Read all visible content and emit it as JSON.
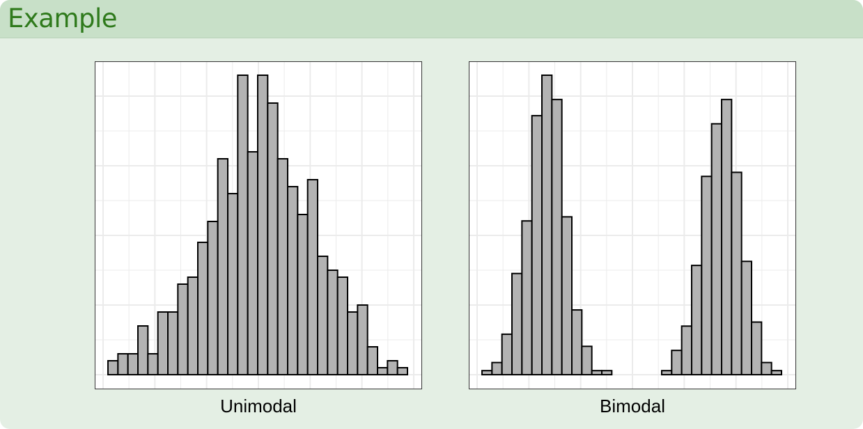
{
  "header": {
    "title": "Example"
  },
  "chart_data": [
    {
      "type": "bar",
      "subtype": "histogram",
      "caption": "Unimodal",
      "values": [
        2,
        3,
        3,
        7,
        3,
        9,
        9,
        13,
        14,
        19,
        22,
        31,
        26,
        43,
        32,
        43,
        39,
        31,
        27,
        23,
        28,
        17,
        15,
        14,
        9,
        10,
        4,
        1,
        2,
        1
      ],
      "ylim": [
        0,
        43
      ],
      "grid": true,
      "axis_ticks_shown": false,
      "colors": {
        "bar_fill": "#b3b3b3",
        "bar_stroke": "#000000",
        "grid": "#ebebeb"
      }
    },
    {
      "type": "bar",
      "subtype": "histogram",
      "caption": "Bimodal",
      "values": [
        1,
        3,
        10,
        25,
        38,
        64,
        74,
        68,
        39,
        16,
        7,
        1,
        1,
        0,
        0,
        0,
        0,
        0,
        1,
        6,
        12,
        27,
        49,
        62,
        68,
        50,
        28,
        13,
        3,
        1
      ],
      "ylim": [
        0,
        74
      ],
      "grid": true,
      "axis_ticks_shown": false,
      "colors": {
        "bar_fill": "#b3b3b3",
        "bar_stroke": "#000000",
        "grid": "#ebebeb"
      }
    }
  ]
}
